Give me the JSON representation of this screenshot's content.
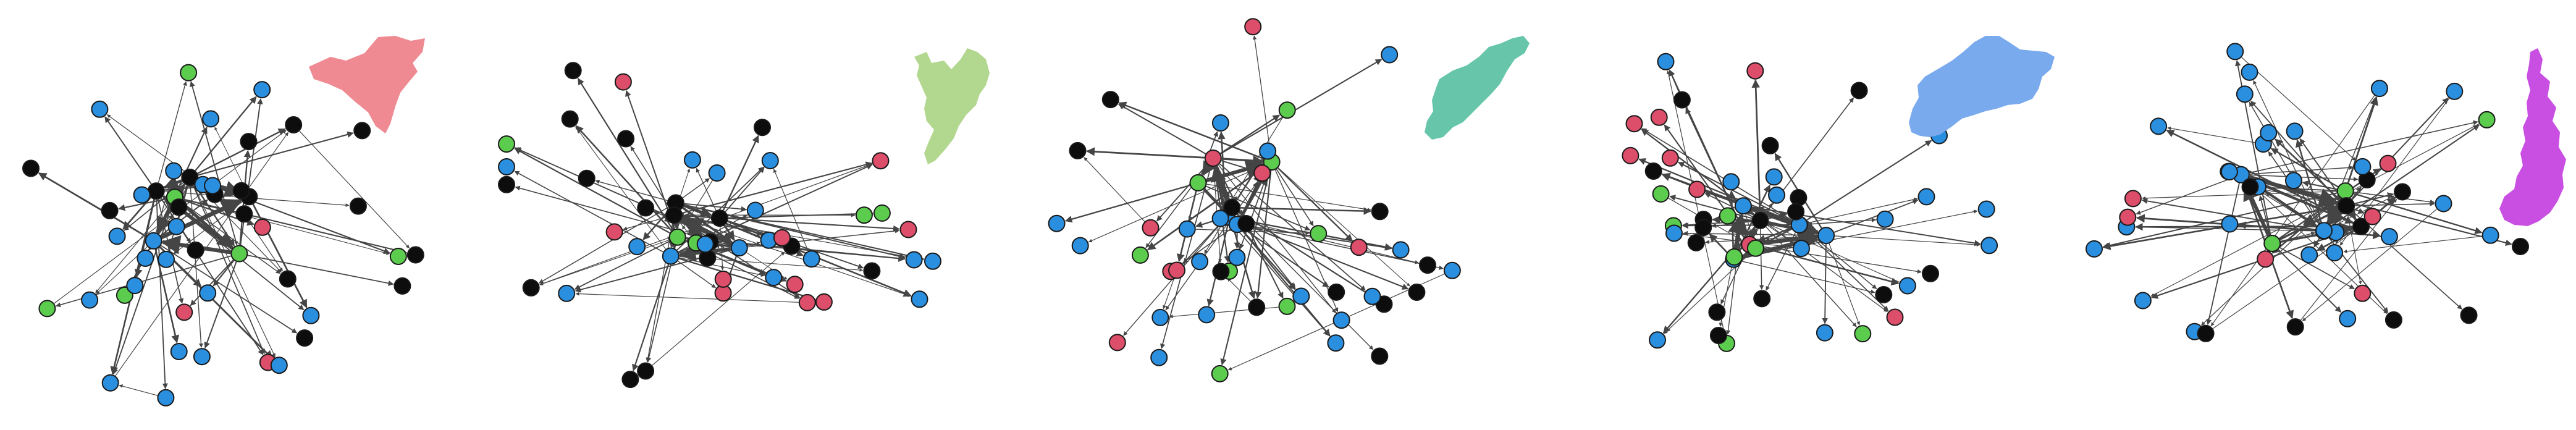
{
  "figure": {
    "panel_count": 5,
    "colors": {
      "blue": "#2b8fe0",
      "black": "#0d0d0d",
      "red": "#dc4e6a",
      "green": "#5ccc4e",
      "edge": "#454545"
    },
    "panels": [
      {
        "region_shape_color": "#f08a92",
        "seed": 11
      },
      {
        "region_shape_color": "#b2d78e",
        "seed": 23
      },
      {
        "region_shape_color": "#67c6aa",
        "seed": 37
      },
      {
        "region_shape_color": "#7aaaee",
        "seed": 51
      },
      {
        "region_shape_color": "#c94fe3",
        "seed": 73
      }
    ]
  }
}
